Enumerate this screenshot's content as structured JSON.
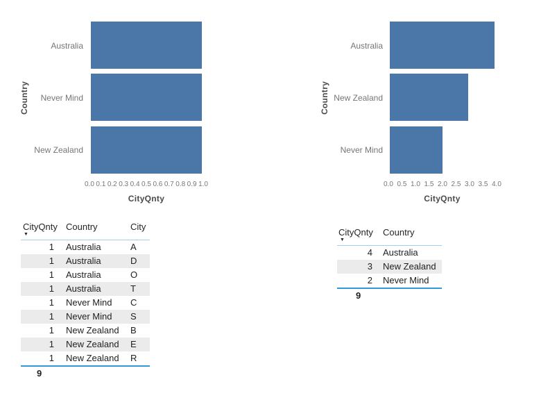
{
  "colors": {
    "bar": "#4A77A7",
    "axis_tick_text": "#777777",
    "axis_title_text": "#4A4A4A",
    "category_label_text": "#767676",
    "table_text": "#212121",
    "header_underline": "#A0CEEE",
    "total_line": "#2D9BD8",
    "row_alt_bg": "#EBEBEB",
    "background": "#FFFFFF"
  },
  "chart_data": [
    {
      "type": "bar",
      "orientation": "horizontal",
      "title": "",
      "categories": [
        "Australia",
        "Never Mind",
        "New Zealand"
      ],
      "values": [
        1.0,
        1.0,
        1.0
      ],
      "xlabel": "CityQnty",
      "ylabel": "Country",
      "xlim": [
        0,
        1.0
      ],
      "xticks": [
        "0.0",
        "0.1",
        "0.2",
        "0.3",
        "0.4",
        "0.5",
        "0.6",
        "0.7",
        "0.8",
        "0.9",
        "1.0"
      ],
      "grid": false,
      "legend": false
    },
    {
      "type": "bar",
      "orientation": "horizontal",
      "title": "",
      "categories": [
        "Australia",
        "New Zealand",
        "Never Mind"
      ],
      "values": [
        4.0,
        3.0,
        2.0
      ],
      "xlabel": "CityQnty",
      "ylabel": "Country",
      "xlim": [
        0,
        4.0
      ],
      "xticks": [
        "0.0",
        "0.5",
        "1.0",
        "1.5",
        "2.0",
        "2.5",
        "3.0",
        "3.5",
        "4.0"
      ],
      "grid": false,
      "legend": false
    }
  ],
  "tables": {
    "left": {
      "headers": [
        "CityQnty",
        "Country",
        "City"
      ],
      "sort_icon": "▼",
      "rows": [
        [
          "1",
          "Australia",
          "A"
        ],
        [
          "1",
          "Australia",
          "D"
        ],
        [
          "1",
          "Australia",
          "O"
        ],
        [
          "1",
          "Australia",
          "T"
        ],
        [
          "1",
          "Never Mind",
          "C"
        ],
        [
          "1",
          "Never Mind",
          "S"
        ],
        [
          "1",
          "New Zealand",
          "B"
        ],
        [
          "1",
          "New Zealand",
          "E"
        ],
        [
          "1",
          "New Zealand",
          "R"
        ]
      ],
      "total": "9"
    },
    "right": {
      "headers": [
        "CityQnty",
        "Country"
      ],
      "sort_icon": "▼",
      "rows": [
        [
          "4",
          "Australia"
        ],
        [
          "3",
          "New Zealand"
        ],
        [
          "2",
          "Never Mind"
        ]
      ],
      "total": "9"
    }
  }
}
